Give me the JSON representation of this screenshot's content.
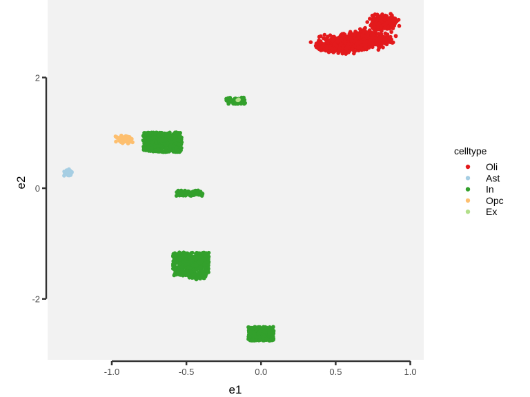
{
  "chart_data": {
    "type": "scatter",
    "xlabel": "e1",
    "ylabel": "e2",
    "xlim": [
      -1.43,
      1.09
    ],
    "ylim": [
      -3.1,
      3.4
    ],
    "x_ticks": [
      -1.0,
      -0.5,
      0.0,
      0.5,
      1.0
    ],
    "x_tick_labels": [
      "-1.0",
      "-0.5",
      "0.0",
      "0.5",
      "1.0"
    ],
    "y_ticks": [
      -2,
      0,
      2
    ],
    "y_tick_labels": [
      "-2",
      "0",
      "2"
    ],
    "grid": false,
    "panel_background": "#f2f2f2",
    "legend": {
      "title": "celltype",
      "placement": "right",
      "entries": [
        {
          "label": "Oli",
          "color": "#e31a1c"
        },
        {
          "label": "Ast",
          "color": "#a6cee3"
        },
        {
          "label": "In",
          "color": "#33a02c"
        },
        {
          "label": "Opc",
          "color": "#fdbf6f"
        },
        {
          "label": "Ex",
          "color": "#b2df8a"
        }
      ]
    },
    "series": [
      {
        "name": "Oli",
        "color": "#e31a1c",
        "clusters": [
          {
            "shape": "ellipse",
            "center": [
              0.63,
              2.65
            ],
            "radius": [
              0.33,
              0.22
            ],
            "angle_deg": 28,
            "n": 900
          },
          {
            "shape": "ellipse",
            "center": [
              0.82,
              3.0
            ],
            "radius": [
              0.12,
              0.17
            ],
            "angle_deg": 0,
            "n": 400
          },
          {
            "shape": "ellipse",
            "center": [
              0.45,
              2.55
            ],
            "radius": [
              0.1,
              0.07
            ],
            "angle_deg": 10,
            "n": 150
          }
        ]
      },
      {
        "name": "Ast",
        "color": "#a6cee3",
        "clusters": [
          {
            "shape": "ellipse",
            "center": [
              -1.29,
              0.28
            ],
            "radius": [
              0.04,
              0.08
            ],
            "angle_deg": 0,
            "n": 70
          }
        ]
      },
      {
        "name": "In",
        "color": "#33a02c",
        "clusters": [
          {
            "shape": "box",
            "center": [
              -0.66,
              0.83
            ],
            "size": [
              0.26,
              0.36
            ],
            "n": 420
          },
          {
            "shape": "box",
            "center": [
              -0.17,
              1.58
            ],
            "size": [
              0.13,
              0.12
            ],
            "n": 60
          },
          {
            "shape": "box",
            "center": [
              -0.48,
              -0.09
            ],
            "size": [
              0.18,
              0.1
            ],
            "n": 80
          },
          {
            "shape": "box",
            "center": [
              -0.47,
              -1.37
            ],
            "size": [
              0.24,
              0.42
            ],
            "n": 400
          },
          {
            "shape": "box",
            "center": [
              -0.43,
              -1.6
            ],
            "size": [
              0.12,
              0.1
            ],
            "n": 40
          },
          {
            "shape": "box",
            "center": [
              0.0,
              -2.63
            ],
            "size": [
              0.17,
              0.25
            ],
            "n": 250
          }
        ]
      },
      {
        "name": "Opc",
        "color": "#fdbf6f",
        "clusters": [
          {
            "shape": "ellipse",
            "center": [
              -0.92,
              0.88
            ],
            "radius": [
              0.07,
              0.09
            ],
            "angle_deg": 15,
            "n": 120
          }
        ]
      },
      {
        "name": "Ex",
        "color": "#b2df8a",
        "clusters": [
          {
            "shape": "ellipse",
            "center": [
              -0.15,
              1.59
            ],
            "radius": [
              0.015,
              0.02
            ],
            "angle_deg": 0,
            "n": 5
          }
        ]
      }
    ]
  }
}
